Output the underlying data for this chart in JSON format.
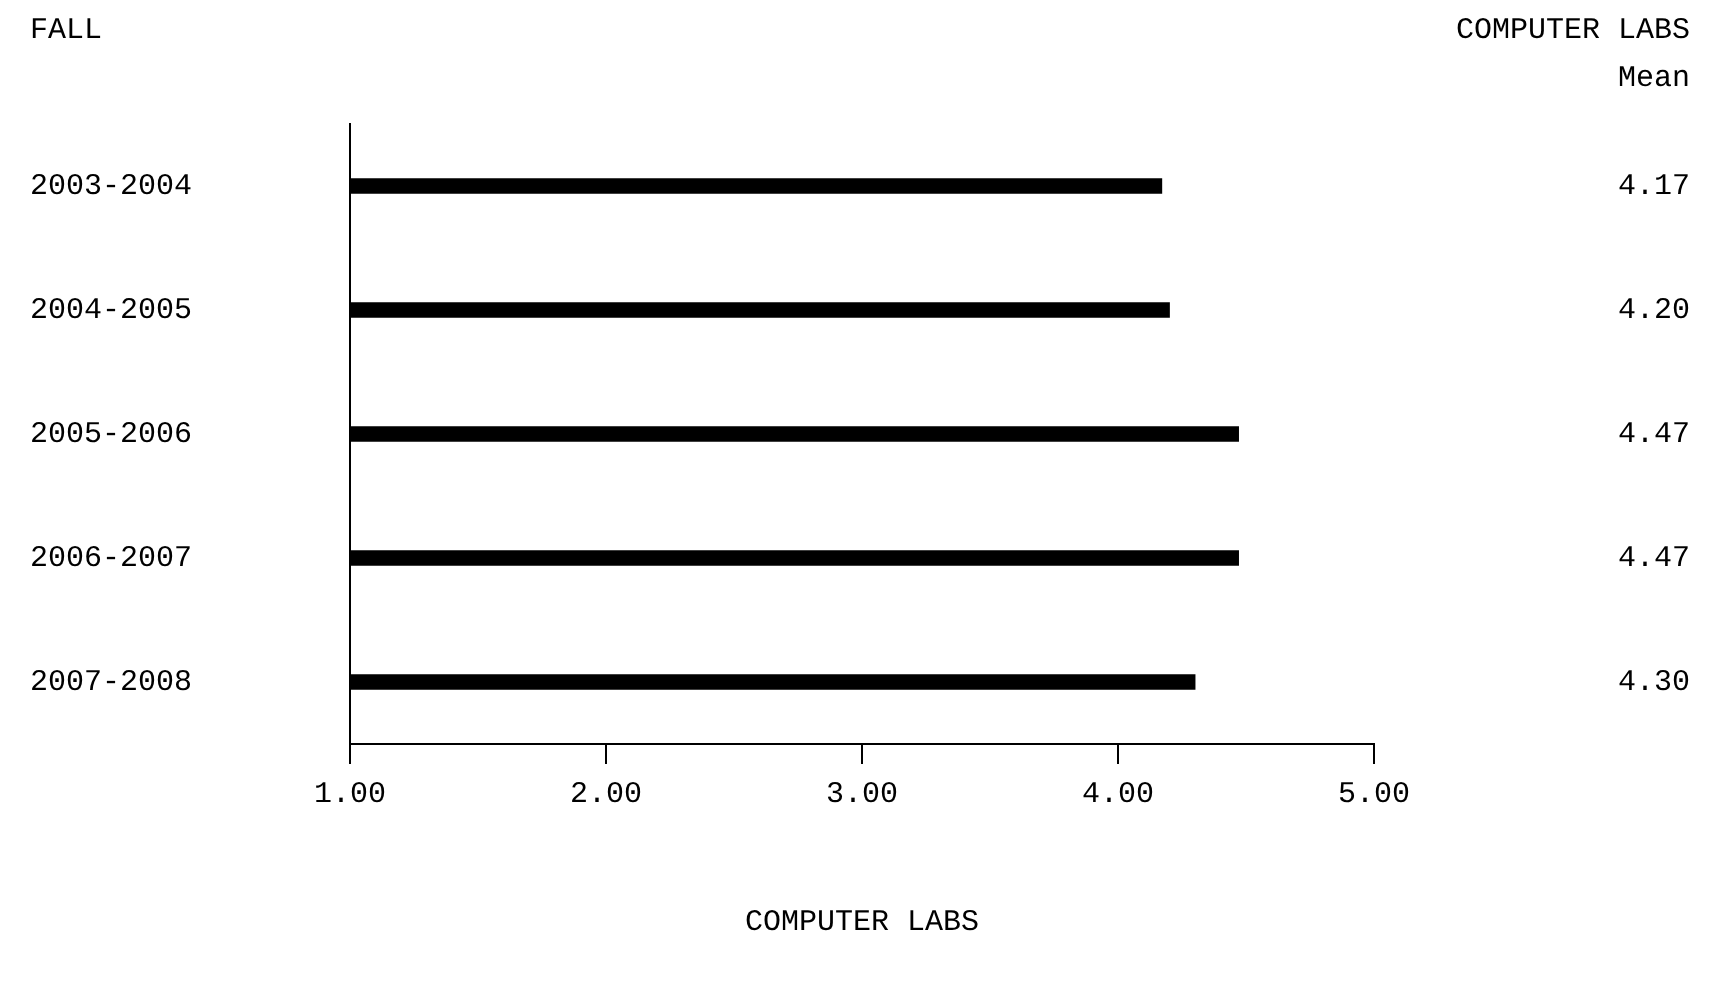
{
  "chart_data": {
    "type": "bar",
    "orientation": "horizontal",
    "ylabel": "FALL",
    "xlabel": "COMPUTER LABS",
    "annotations": [
      "COMPUTER LABS",
      "Mean"
    ],
    "categories": [
      "2003-2004",
      "2004-2005",
      "2005-2006",
      "2006-2007",
      "2007-2008"
    ],
    "values": [
      4.17,
      4.2,
      4.47,
      4.47,
      4.3
    ],
    "value_labels": [
      "4.17",
      "4.20",
      "4.47",
      "4.47",
      "4.30"
    ],
    "color": "#000000",
    "xlim": [
      1,
      5
    ],
    "xticks": [
      {
        "value": 1,
        "label": "1.00"
      },
      {
        "value": 2,
        "label": "2.00"
      },
      {
        "value": 3,
        "label": "3.00"
      },
      {
        "value": 4,
        "label": "4.00"
      },
      {
        "value": 5,
        "label": "5.00"
      }
    ],
    "grid": false,
    "legend": false
  }
}
